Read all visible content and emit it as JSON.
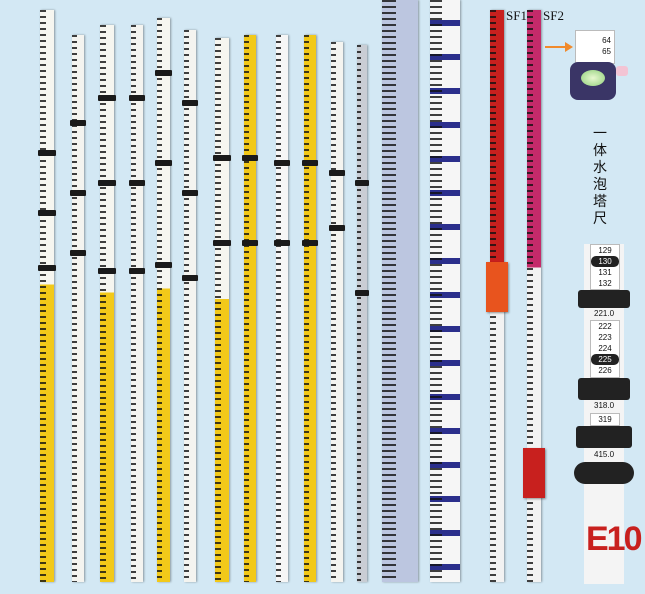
{
  "labels": {
    "sf1": "SF1",
    "sf2": "SF2"
  },
  "caption": "一体水泡塔尺",
  "level_inset": {
    "readings": [
      "64",
      "65"
    ]
  },
  "detail_readings": {
    "section1": [
      "129",
      "130",
      "131",
      "132"
    ],
    "section2_start": "221.0",
    "section2": [
      "222",
      "223",
      "224",
      "225",
      "226"
    ],
    "section3_start": "318.0",
    "section3": [
      "319"
    ],
    "section4_start": "415.0"
  },
  "bottom_mark": "E10",
  "colors": {
    "background": "#d3e8f4",
    "yellow": "#f2c919",
    "red": "#c8201e",
    "magenta": "#c42a6a",
    "blue": "#2b2f8c",
    "arrow": "#f08a2c"
  }
}
